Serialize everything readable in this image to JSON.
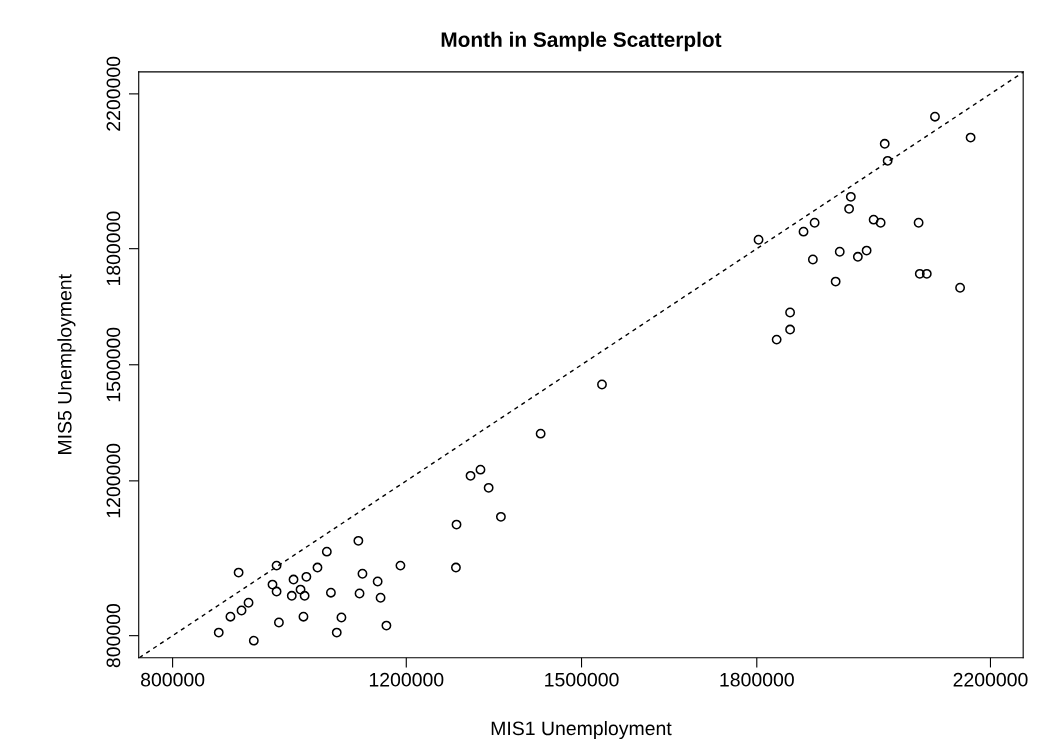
{
  "chart_data": {
    "type": "scatter",
    "title": "Month in Sample Scatterplot",
    "xlabel": "MIS1 Unemployment",
    "ylabel": "MIS5 Unemployment",
    "xlim": [
      742000,
      2256000
    ],
    "ylim": [
      743000,
      2257000
    ],
    "xticks": [
      800000,
      1200000,
      1500000,
      1800000,
      2200000
    ],
    "yticks": [
      800000,
      1200000,
      1500000,
      1800000,
      2200000
    ],
    "grid": false,
    "series": [
      {
        "color": "#000000",
        "marker": "circle",
        "x": [
          913000,
          978000,
          1064000,
          1118000,
          1048000,
          971000,
          1007000,
          1029000,
          1125000,
          1151000,
          1190000,
          1285000,
          1286000,
          1310000,
          1327000,
          1341000,
          1362000,
          1430000,
          1535000,
          1803000,
          1880000,
          1899000,
          1896000,
          1935000,
          1942000,
          1958000,
          1961000,
          1973000,
          1988000,
          2000000,
          2012000,
          2019000,
          2024000,
          2105000,
          2166000,
          2077000,
          2079000,
          2091000,
          2148000,
          1857000,
          1857000,
          1834000,
          879000,
          899000,
          918000,
          930000,
          939000,
          978000,
          982000,
          1004000,
          1019000,
          1026000,
          1024000,
          1071000,
          1081000,
          1089000,
          1120000,
          1156000,
          1166000
        ],
        "values": [
          963000,
          981000,
          1017000,
          1045000,
          976000,
          932000,
          945000,
          952000,
          960000,
          940000,
          981000,
          976000,
          1087000,
          1213000,
          1229000,
          1182000,
          1107000,
          1322000,
          1449000,
          1823000,
          1844000,
          1867000,
          1772000,
          1715000,
          1792000,
          1903000,
          1934000,
          1779000,
          1795000,
          1875000,
          1867000,
          2071000,
          2027000,
          2141000,
          2087000,
          1867000,
          1735000,
          1735000,
          1699000,
          1635000,
          1591000,
          1565000,
          808000,
          849000,
          865000,
          885000,
          787000,
          914000,
          834000,
          903000,
          919000,
          903000,
          849000,
          911000,
          808000,
          847000,
          909000,
          898000,
          826000
        ]
      },
      {
        "type": "line",
        "color": "#000000",
        "marker": "none",
        "line_style": "dashed",
        "x": [
          743000,
          2256000
        ],
        "values": [
          743000,
          2256000
        ]
      }
    ]
  }
}
